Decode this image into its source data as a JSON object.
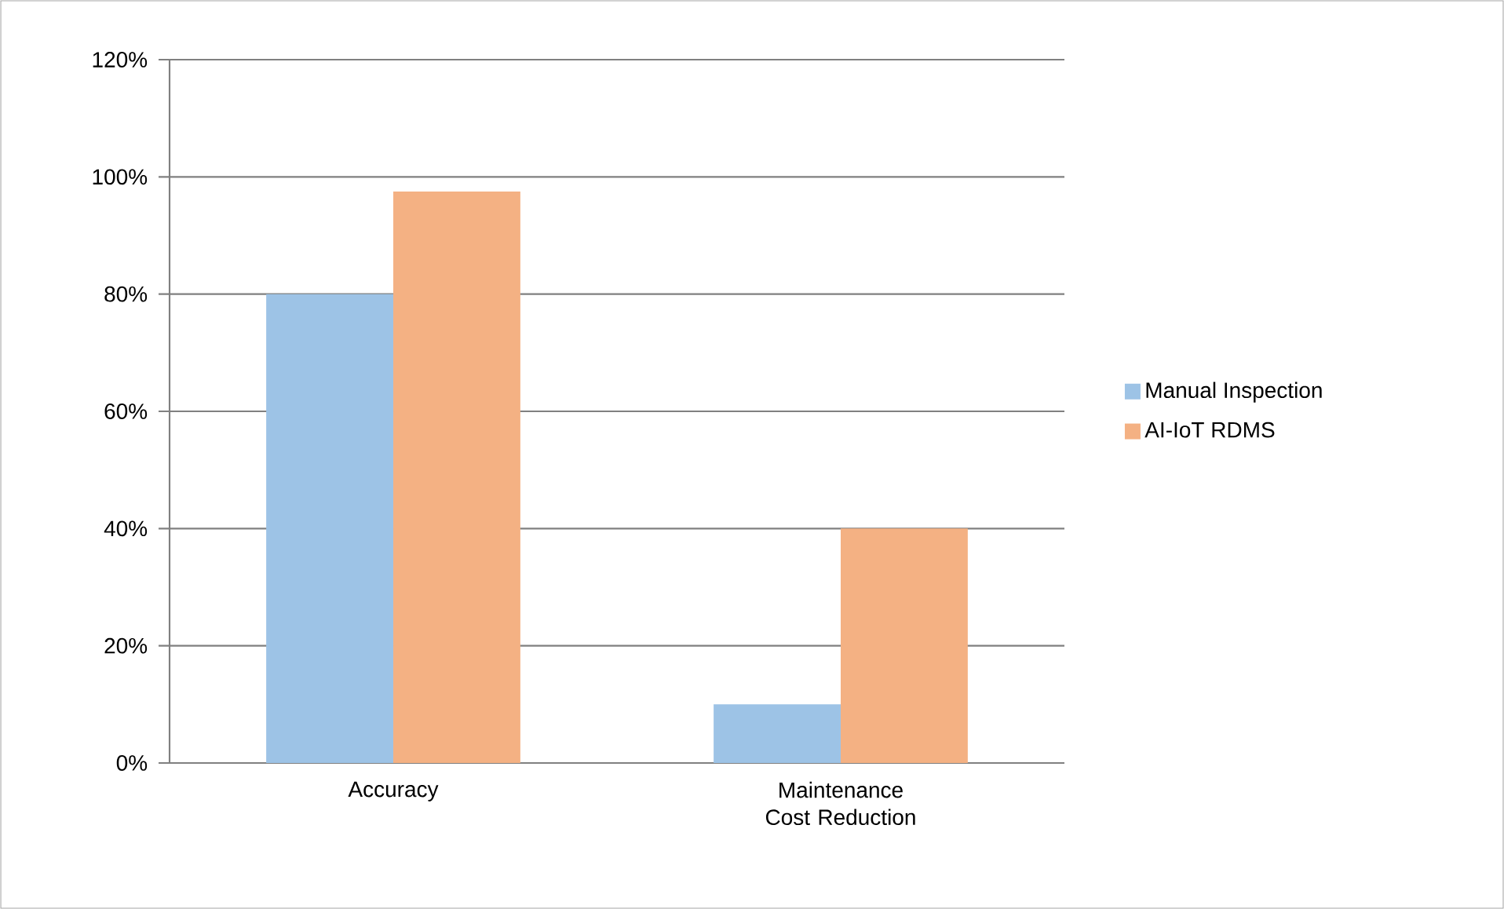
{
  "chart_data": {
    "type": "bar",
    "categories": [
      "Accuracy",
      "Maintenance Cost Reduction"
    ],
    "series": [
      {
        "name": "Manual Inspection",
        "color": "#9dc3e6",
        "values": [
          80,
          10
        ]
      },
      {
        "name": "AI-IoT RDMS",
        "color": "#f4b183",
        "values": [
          97.5,
          40
        ]
      }
    ],
    "ylim": [
      0,
      120
    ],
    "yticks": [
      {
        "value": 0,
        "label": "0%"
      },
      {
        "value": 20,
        "label": "20%"
      },
      {
        "value": 40,
        "label": "40%"
      },
      {
        "value": 60,
        "label": "60%"
      },
      {
        "value": 80,
        "label": "80%"
      },
      {
        "value": 100,
        "label": "100%"
      },
      {
        "value": 120,
        "label": "120%"
      }
    ],
    "grid": "y",
    "legend": "right"
  }
}
